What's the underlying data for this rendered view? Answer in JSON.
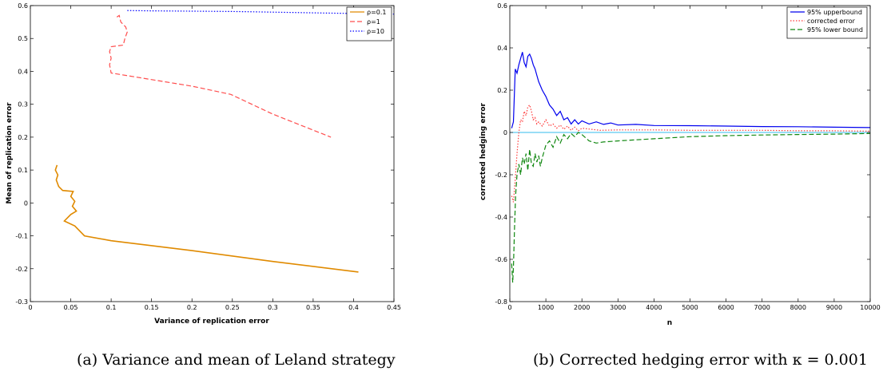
{
  "chart_data": [
    {
      "type": "line",
      "title": "",
      "xlabel": "Variance of replication error",
      "ylabel": "Mean of replication error",
      "xlim": [
        0,
        0.45
      ],
      "ylim": [
        -0.3,
        0.6
      ],
      "xticks": [
        0,
        0.05,
        0.1,
        0.15,
        0.2,
        0.25,
        0.3,
        0.35,
        0.4,
        0.45
      ],
      "xtick_labels": [
        "0",
        "0.05",
        "0.1",
        "0.15",
        "0.2",
        "0.25",
        "0.3",
        "0.35",
        "0.4",
        "0.45"
      ],
      "yticks": [
        -0.3,
        -0.2,
        -0.1,
        0,
        0.1,
        0.2,
        0.3,
        0.4,
        0.5,
        0.6
      ],
      "ytick_labels": [
        "-0.3",
        "-0.2",
        "-0.1",
        "0",
        "0.1",
        "0.2",
        "0.3",
        "0.4",
        "0.5",
        "0.6"
      ],
      "grid": false,
      "legend_position": "top-right",
      "series": [
        {
          "name": "ρ=0.1",
          "color": "#e08a00",
          "style": "solid",
          "x": [
            0.033,
            0.031,
            0.034,
            0.032,
            0.035,
            0.04,
            0.053,
            0.05,
            0.055,
            0.052,
            0.057,
            0.05,
            0.042,
            0.055,
            0.067,
            0.1,
            0.2,
            0.3,
            0.406
          ],
          "y": [
            0.115,
            0.1,
            0.085,
            0.07,
            0.05,
            0.038,
            0.035,
            0.02,
            0.005,
            -0.01,
            -0.025,
            -0.035,
            -0.055,
            -0.07,
            -0.1,
            -0.115,
            -0.145,
            -0.178,
            -0.21
          ]
        },
        {
          "name": "ρ=1",
          "color": "#ff4d4d",
          "style": "dashed",
          "x": [
            0.107,
            0.11,
            0.112,
            0.118,
            0.12,
            0.117,
            0.115,
            0.1,
            0.098,
            0.1,
            0.098,
            0.1,
            0.2,
            0.248,
            0.3,
            0.372
          ],
          "y": [
            0.565,
            0.57,
            0.55,
            0.535,
            0.52,
            0.5,
            0.48,
            0.475,
            0.46,
            0.44,
            0.42,
            0.395,
            0.355,
            0.33,
            0.27,
            0.2
          ]
        },
        {
          "name": "ρ=10",
          "color": "#0000ff",
          "style": "dotted",
          "x": [
            0.12,
            0.15,
            0.2,
            0.25,
            0.3,
            0.35,
            0.4,
            0.45
          ],
          "y": [
            0.585,
            0.584,
            0.583,
            0.582,
            0.58,
            0.578,
            0.576,
            0.574
          ]
        }
      ]
    },
    {
      "type": "line",
      "title": "",
      "xlabel": "n",
      "ylabel": "corrected hedging error",
      "xlim": [
        0,
        10000
      ],
      "ylim": [
        -0.8,
        0.6
      ],
      "xticks": [
        0,
        1000,
        2000,
        3000,
        4000,
        5000,
        6000,
        7000,
        8000,
        9000,
        10000
      ],
      "xtick_labels": [
        "0",
        "1000",
        "2000",
        "3000",
        "4000",
        "5000",
        "6000",
        "7000",
        "8000",
        "9000",
        "10000"
      ],
      "yticks": [
        -0.8,
        -0.6,
        -0.4,
        -0.2,
        0,
        0.2,
        0.4,
        0.6
      ],
      "ytick_labels": [
        "-0.8",
        "-0.6",
        "-0.4",
        "-0.2",
        "0",
        "0.2",
        "0.4",
        "0.6"
      ],
      "grid": false,
      "legend_position": "top-right",
      "reference_line": {
        "y": 0,
        "color": "#33bbee"
      },
      "series": [
        {
          "name": "95% upperbound",
          "color": "#0000ee",
          "style": "solid",
          "x": [
            50,
            100,
            150,
            200,
            250,
            300,
            350,
            400,
            450,
            500,
            550,
            600,
            650,
            700,
            750,
            800,
            900,
            1000,
            1100,
            1200,
            1300,
            1400,
            1500,
            1600,
            1700,
            1800,
            1900,
            2000,
            2200,
            2400,
            2600,
            2800,
            3000,
            3500,
            4000,
            5000,
            6000,
            7000,
            8000,
            9000,
            10000
          ],
          "y": [
            0.02,
            0.05,
            0.3,
            0.28,
            0.32,
            0.35,
            0.38,
            0.33,
            0.31,
            0.36,
            0.37,
            0.35,
            0.32,
            0.3,
            0.27,
            0.24,
            0.2,
            0.17,
            0.13,
            0.11,
            0.08,
            0.1,
            0.06,
            0.07,
            0.04,
            0.06,
            0.04,
            0.055,
            0.04,
            0.05,
            0.038,
            0.045,
            0.035,
            0.038,
            0.033,
            0.032,
            0.03,
            0.028,
            0.027,
            0.025,
            0.023
          ]
        },
        {
          "name": "corrected error",
          "color": "#ff3b3b",
          "style": "dotted",
          "x": [
            50,
            100,
            150,
            200,
            250,
            300,
            350,
            400,
            450,
            500,
            550,
            600,
            650,
            700,
            750,
            800,
            900,
            1000,
            1100,
            1200,
            1300,
            1400,
            1500,
            1600,
            1700,
            1800,
            1900,
            2000,
            2500,
            3000,
            4000,
            5000,
            6000,
            7000,
            8000,
            9000,
            10000
          ],
          "y": [
            -0.3,
            -0.33,
            -0.22,
            -0.1,
            0.0,
            0.06,
            0.05,
            0.1,
            0.08,
            0.12,
            0.13,
            0.1,
            0.06,
            0.07,
            0.04,
            0.05,
            0.03,
            0.06,
            0.03,
            0.04,
            0.02,
            0.035,
            0.015,
            0.03,
            0.01,
            0.025,
            0.008,
            0.02,
            0.01,
            0.012,
            0.012,
            0.01,
            0.01,
            0.01,
            0.008,
            0.008,
            0.006
          ]
        },
        {
          "name": "95% lower bound",
          "color": "#118811",
          "style": "dashed",
          "x": [
            50,
            80,
            100,
            130,
            160,
            200,
            250,
            300,
            350,
            400,
            450,
            500,
            550,
            600,
            650,
            700,
            750,
            800,
            850,
            900,
            1000,
            1100,
            1200,
            1300,
            1400,
            1500,
            1600,
            1700,
            1800,
            1900,
            2000,
            2200,
            2400,
            2600,
            3000,
            4000,
            5000,
            6000,
            7000,
            8000,
            9000,
            10000
          ],
          "y": [
            -0.62,
            -0.71,
            -0.64,
            -0.45,
            -0.3,
            -0.2,
            -0.15,
            -0.2,
            -0.12,
            -0.15,
            -0.1,
            -0.18,
            -0.08,
            -0.15,
            -0.16,
            -0.1,
            -0.14,
            -0.11,
            -0.16,
            -0.12,
            -0.06,
            -0.04,
            -0.07,
            -0.02,
            -0.05,
            -0.01,
            -0.03,
            -0.005,
            -0.02,
            0.0,
            -0.01,
            -0.04,
            -0.05,
            -0.045,
            -0.04,
            -0.03,
            -0.02,
            -0.015,
            -0.012,
            -0.01,
            -0.008,
            -0.005
          ]
        }
      ]
    }
  ],
  "captions": {
    "a": "(a) Variance and mean of Leland strategy",
    "b": "(b) Corrected hedging error with κ = 0.001"
  }
}
